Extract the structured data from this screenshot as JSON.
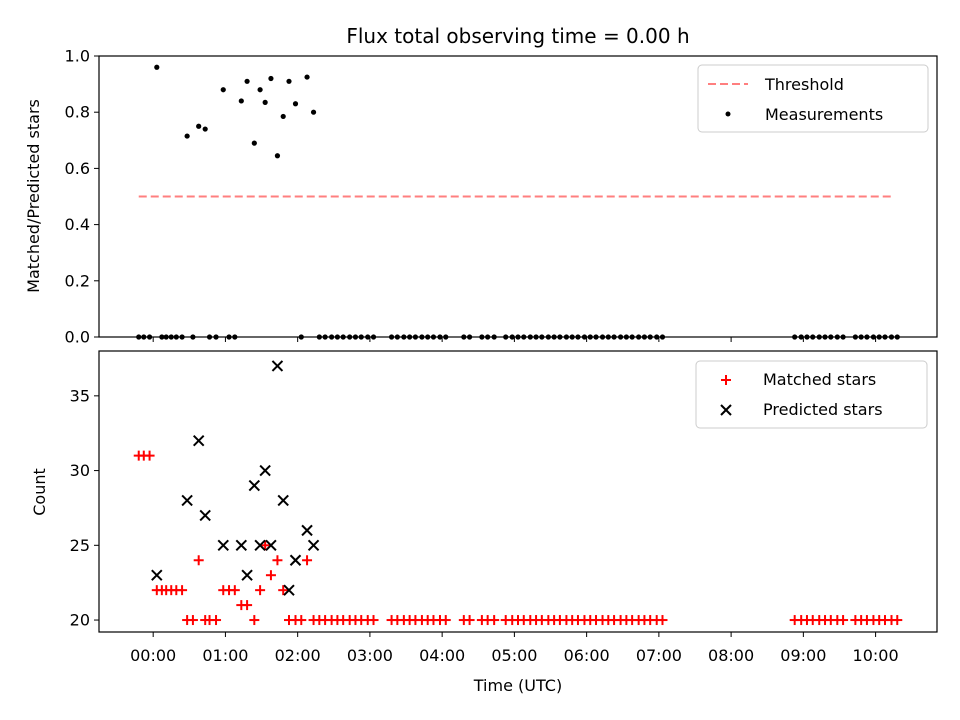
{
  "chart_data": [
    {
      "type": "scatter",
      "title": "Flux total observing time = 0.00 h",
      "ylabel": "Matched/Predicted stars",
      "xlabel": "",
      "ylim": [
        0,
        1.0
      ],
      "xlim": [
        -0.75,
        10.85
      ],
      "yticks": [
        0.0,
        0.2,
        0.4,
        0.6,
        0.8,
        1.0
      ],
      "ytick_labels": [
        "0.0",
        "0.2",
        "0.4",
        "0.6",
        "0.8",
        "1.0"
      ],
      "grid": false,
      "legend_position": "top-right",
      "threshold": {
        "name": "Threshold",
        "value": 0.5,
        "x_start": -0.2,
        "x_end": 10.25,
        "color": "#ff7f7f",
        "style": "dashed"
      },
      "series": [
        {
          "name": "Measurements",
          "color": "#000000",
          "marker": "dot",
          "points": [
            [
              -0.2,
              0
            ],
            [
              -0.13,
              0
            ],
            [
              -0.05,
              0
            ],
            [
              0.05,
              0.96
            ],
            [
              0.12,
              0
            ],
            [
              0.18,
              0
            ],
            [
              0.25,
              0
            ],
            [
              0.32,
              0
            ],
            [
              0.4,
              0
            ],
            [
              0.47,
              0.715
            ],
            [
              0.55,
              0
            ],
            [
              0.63,
              0.75
            ],
            [
              0.72,
              0.74
            ],
            [
              0.78,
              0
            ],
            [
              0.87,
              0
            ],
            [
              0.97,
              0.88
            ],
            [
              1.05,
              0
            ],
            [
              1.13,
              0
            ],
            [
              1.22,
              0.84
            ],
            [
              1.3,
              0.91
            ],
            [
              1.4,
              0.69
            ],
            [
              1.48,
              0.88
            ],
            [
              1.55,
              0.835
            ],
            [
              1.63,
              0.92
            ],
            [
              1.72,
              0.645
            ],
            [
              1.8,
              0.785
            ],
            [
              1.88,
              0.91
            ],
            [
              1.97,
              0.83
            ],
            [
              2.05,
              0
            ],
            [
              2.13,
              0.925
            ],
            [
              2.22,
              0.8
            ],
            [
              2.3,
              0
            ],
            [
              2.38,
              0
            ],
            [
              2.47,
              0
            ],
            [
              2.55,
              0
            ],
            [
              2.63,
              0
            ],
            [
              2.72,
              0
            ],
            [
              2.8,
              0
            ],
            [
              2.88,
              0
            ],
            [
              2.97,
              0
            ],
            [
              3.05,
              0
            ],
            [
              3.3,
              0
            ],
            [
              3.38,
              0
            ],
            [
              3.47,
              0
            ],
            [
              3.55,
              0
            ],
            [
              3.63,
              0
            ],
            [
              3.72,
              0
            ],
            [
              3.8,
              0
            ],
            [
              3.88,
              0
            ],
            [
              3.97,
              0
            ],
            [
              4.05,
              0
            ],
            [
              4.3,
              0
            ],
            [
              4.38,
              0
            ],
            [
              4.55,
              0
            ],
            [
              4.63,
              0
            ],
            [
              4.72,
              0
            ],
            [
              4.88,
              0
            ],
            [
              4.97,
              0
            ],
            [
              5.05,
              0
            ],
            [
              5.13,
              0
            ],
            [
              5.22,
              0
            ],
            [
              5.3,
              0
            ],
            [
              5.38,
              0
            ],
            [
              5.47,
              0
            ],
            [
              5.55,
              0
            ],
            [
              5.63,
              0
            ],
            [
              5.72,
              0
            ],
            [
              5.8,
              0
            ],
            [
              5.88,
              0
            ],
            [
              5.97,
              0
            ],
            [
              6.05,
              0
            ],
            [
              6.13,
              0
            ],
            [
              6.22,
              0
            ],
            [
              6.3,
              0
            ],
            [
              6.38,
              0
            ],
            [
              6.47,
              0
            ],
            [
              6.55,
              0
            ],
            [
              6.63,
              0
            ],
            [
              6.72,
              0
            ],
            [
              6.8,
              0
            ],
            [
              6.88,
              0
            ],
            [
              6.97,
              0
            ],
            [
              7.05,
              0
            ],
            [
              8.88,
              0
            ],
            [
              8.97,
              0
            ],
            [
              9.05,
              0
            ],
            [
              9.13,
              0
            ],
            [
              9.22,
              0
            ],
            [
              9.3,
              0
            ],
            [
              9.38,
              0
            ],
            [
              9.47,
              0
            ],
            [
              9.55,
              0
            ],
            [
              9.72,
              0
            ],
            [
              9.8,
              0
            ],
            [
              9.88,
              0
            ],
            [
              9.97,
              0
            ],
            [
              10.05,
              0
            ],
            [
              10.13,
              0
            ],
            [
              10.22,
              0
            ],
            [
              10.3,
              0
            ]
          ]
        }
      ]
    },
    {
      "type": "scatter",
      "title": "",
      "xlabel": "Time (UTC)",
      "ylabel": "Count",
      "ylim": [
        19.2,
        38.0
      ],
      "xlim": [
        -0.75,
        10.85
      ],
      "yticks": [
        20,
        25,
        30,
        35
      ],
      "ytick_labels": [
        "20",
        "25",
        "30",
        "35"
      ],
      "xticks": [
        0,
        1,
        2,
        3,
        4,
        5,
        6,
        7,
        8,
        9,
        10
      ],
      "xtick_labels": [
        "00:00",
        "01:00",
        "02:00",
        "03:00",
        "04:00",
        "05:00",
        "06:00",
        "07:00",
        "08:00",
        "09:00",
        "10:00"
      ],
      "grid": false,
      "legend_position": "top-right",
      "series": [
        {
          "name": "Matched stars",
          "color": "#ff0000",
          "marker": "plus",
          "points": [
            [
              -0.2,
              31
            ],
            [
              -0.13,
              31
            ],
            [
              -0.05,
              31
            ],
            [
              0.05,
              22
            ],
            [
              0.12,
              22
            ],
            [
              0.18,
              22
            ],
            [
              0.25,
              22
            ],
            [
              0.32,
              22
            ],
            [
              0.4,
              22
            ],
            [
              0.47,
              20
            ],
            [
              0.55,
              20
            ],
            [
              0.63,
              24
            ],
            [
              0.72,
              20
            ],
            [
              0.78,
              20
            ],
            [
              0.87,
              20
            ],
            [
              0.97,
              22
            ],
            [
              1.05,
              22
            ],
            [
              1.13,
              22
            ],
            [
              1.22,
              21
            ],
            [
              1.3,
              21
            ],
            [
              1.4,
              20
            ],
            [
              1.48,
              22
            ],
            [
              1.55,
              25
            ],
            [
              1.63,
              23
            ],
            [
              1.72,
              24
            ],
            [
              1.8,
              22
            ],
            [
              1.88,
              20
            ],
            [
              1.97,
              20
            ],
            [
              2.05,
              20
            ],
            [
              2.13,
              24
            ],
            [
              2.22,
              20
            ],
            [
              2.3,
              20
            ],
            [
              2.38,
              20
            ],
            [
              2.47,
              20
            ],
            [
              2.55,
              20
            ],
            [
              2.63,
              20
            ],
            [
              2.72,
              20
            ],
            [
              2.8,
              20
            ],
            [
              2.88,
              20
            ],
            [
              2.97,
              20
            ],
            [
              3.05,
              20
            ],
            [
              3.3,
              20
            ],
            [
              3.38,
              20
            ],
            [
              3.47,
              20
            ],
            [
              3.55,
              20
            ],
            [
              3.63,
              20
            ],
            [
              3.72,
              20
            ],
            [
              3.8,
              20
            ],
            [
              3.88,
              20
            ],
            [
              3.97,
              20
            ],
            [
              4.05,
              20
            ],
            [
              4.3,
              20
            ],
            [
              4.38,
              20
            ],
            [
              4.55,
              20
            ],
            [
              4.63,
              20
            ],
            [
              4.72,
              20
            ],
            [
              4.88,
              20
            ],
            [
              4.97,
              20
            ],
            [
              5.05,
              20
            ],
            [
              5.13,
              20
            ],
            [
              5.22,
              20
            ],
            [
              5.3,
              20
            ],
            [
              5.38,
              20
            ],
            [
              5.47,
              20
            ],
            [
              5.55,
              20
            ],
            [
              5.63,
              20
            ],
            [
              5.72,
              20
            ],
            [
              5.8,
              20
            ],
            [
              5.88,
              20
            ],
            [
              5.97,
              20
            ],
            [
              6.05,
              20
            ],
            [
              6.13,
              20
            ],
            [
              6.22,
              20
            ],
            [
              6.3,
              20
            ],
            [
              6.38,
              20
            ],
            [
              6.47,
              20
            ],
            [
              6.55,
              20
            ],
            [
              6.63,
              20
            ],
            [
              6.72,
              20
            ],
            [
              6.8,
              20
            ],
            [
              6.88,
              20
            ],
            [
              6.97,
              20
            ],
            [
              7.05,
              20
            ],
            [
              8.88,
              20
            ],
            [
              8.97,
              20
            ],
            [
              9.05,
              20
            ],
            [
              9.13,
              20
            ],
            [
              9.22,
              20
            ],
            [
              9.3,
              20
            ],
            [
              9.38,
              20
            ],
            [
              9.47,
              20
            ],
            [
              9.55,
              20
            ],
            [
              9.72,
              20
            ],
            [
              9.8,
              20
            ],
            [
              9.88,
              20
            ],
            [
              9.97,
              20
            ],
            [
              10.05,
              20
            ],
            [
              10.13,
              20
            ],
            [
              10.22,
              20
            ],
            [
              10.3,
              20
            ]
          ]
        },
        {
          "name": "Predicted stars",
          "color": "#000000",
          "marker": "x",
          "points": [
            [
              0.05,
              23
            ],
            [
              0.47,
              28
            ],
            [
              0.63,
              32
            ],
            [
              0.72,
              27
            ],
            [
              0.97,
              25
            ],
            [
              1.22,
              25
            ],
            [
              1.3,
              23
            ],
            [
              1.4,
              29
            ],
            [
              1.48,
              25
            ],
            [
              1.55,
              30
            ],
            [
              1.63,
              25
            ],
            [
              1.72,
              37
            ],
            [
              1.8,
              28
            ],
            [
              1.88,
              22
            ],
            [
              1.97,
              24
            ],
            [
              2.13,
              26
            ],
            [
              2.22,
              25
            ]
          ]
        }
      ]
    }
  ]
}
